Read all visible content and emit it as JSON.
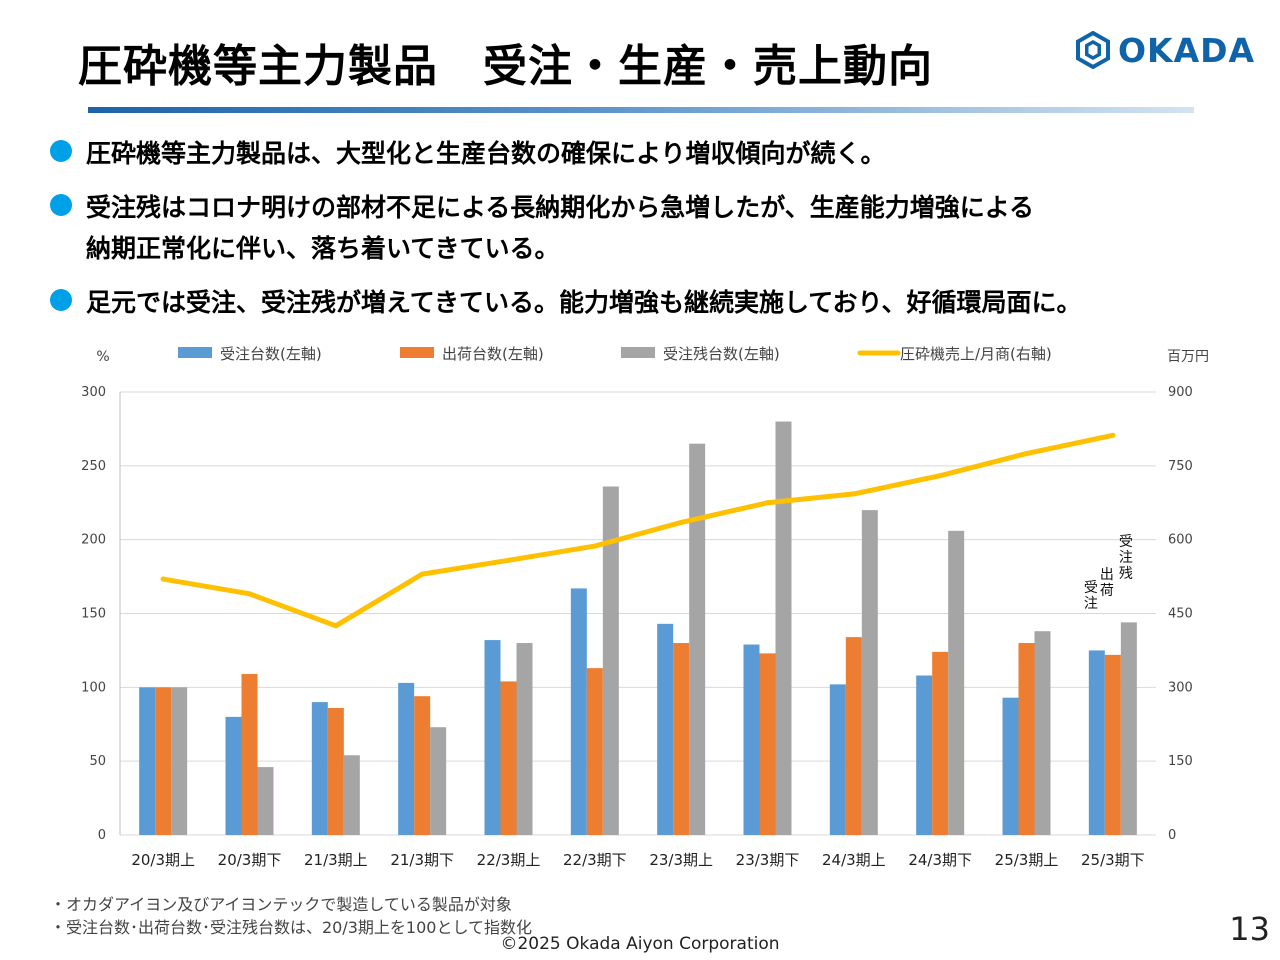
{
  "header": {
    "title": "圧砕機等主力製品　受注・生産・売上動向",
    "logo_text": "OKADA"
  },
  "bullets": [
    {
      "lines": [
        "圧砕機等主力製品は、大型化と生産台数の確保により増収傾向が続く。"
      ]
    },
    {
      "lines": [
        "受注残はコロナ明けの部材不足による長納期化から急増したが、生産能力増強による",
        "納期正常化に伴い、落ち着いてきている。"
      ]
    },
    {
      "lines": [
        "足元では受注、受注残が増えてきている。能力増強も継続実施しており、好循環局面に。"
      ]
    }
  ],
  "chart_data": {
    "type": "bar",
    "categories": [
      "20/3期上",
      "20/3期下",
      "21/3期上",
      "21/3期下",
      "22/3期上",
      "22/3期下",
      "23/3期上",
      "23/3期下",
      "24/3期上",
      "24/3期下",
      "25/3期上",
      "25/3期下"
    ],
    "series": [
      {
        "name": "受注台数(左軸)",
        "type": "bar",
        "axis": "left",
        "color": "#5b9bd5",
        "values": [
          100,
          80,
          90,
          103,
          132,
          167,
          143,
          129,
          102,
          108,
          93,
          125
        ]
      },
      {
        "name": "出荷台数(左軸)",
        "type": "bar",
        "axis": "left",
        "color": "#ed7d31",
        "values": [
          100,
          109,
          86,
          94,
          104,
          113,
          130,
          123,
          134,
          124,
          130,
          122
        ]
      },
      {
        "name": "受注残台数(左軸)",
        "type": "bar",
        "axis": "left",
        "color": "#a5a5a5",
        "values": [
          100,
          46,
          54,
          73,
          130,
          236,
          265,
          280,
          220,
          206,
          138,
          144
        ]
      },
      {
        "name": "圧砕機売上/月商(右軸)",
        "type": "line",
        "axis": "right",
        "color": "#ffc000",
        "values": [
          520,
          490,
          425,
          530,
          558,
          587,
          635,
          675,
          693,
          730,
          775,
          812
        ]
      }
    ],
    "ylabel": "%",
    "y2label": "百万円",
    "ylim": [
      0,
      300
    ],
    "yticks": [
      0,
      50,
      100,
      150,
      200,
      250,
      300
    ],
    "y2lim": [
      0,
      900
    ],
    "y2ticks": [
      0,
      150,
      300,
      450,
      600,
      750,
      900
    ],
    "grid": true,
    "legend": "top",
    "annotations": [
      "受注",
      "出荷",
      "受注残"
    ]
  },
  "notes": [
    "・オカダアイヨン及びアイヨンテックで製造している製品が対象",
    "・受注台数･出荷台数･受注残台数は、20/3期上を100として指数化"
  ],
  "footer": {
    "copyright": "©2025 Okada Aiyon Corporation",
    "page_number": "13"
  }
}
